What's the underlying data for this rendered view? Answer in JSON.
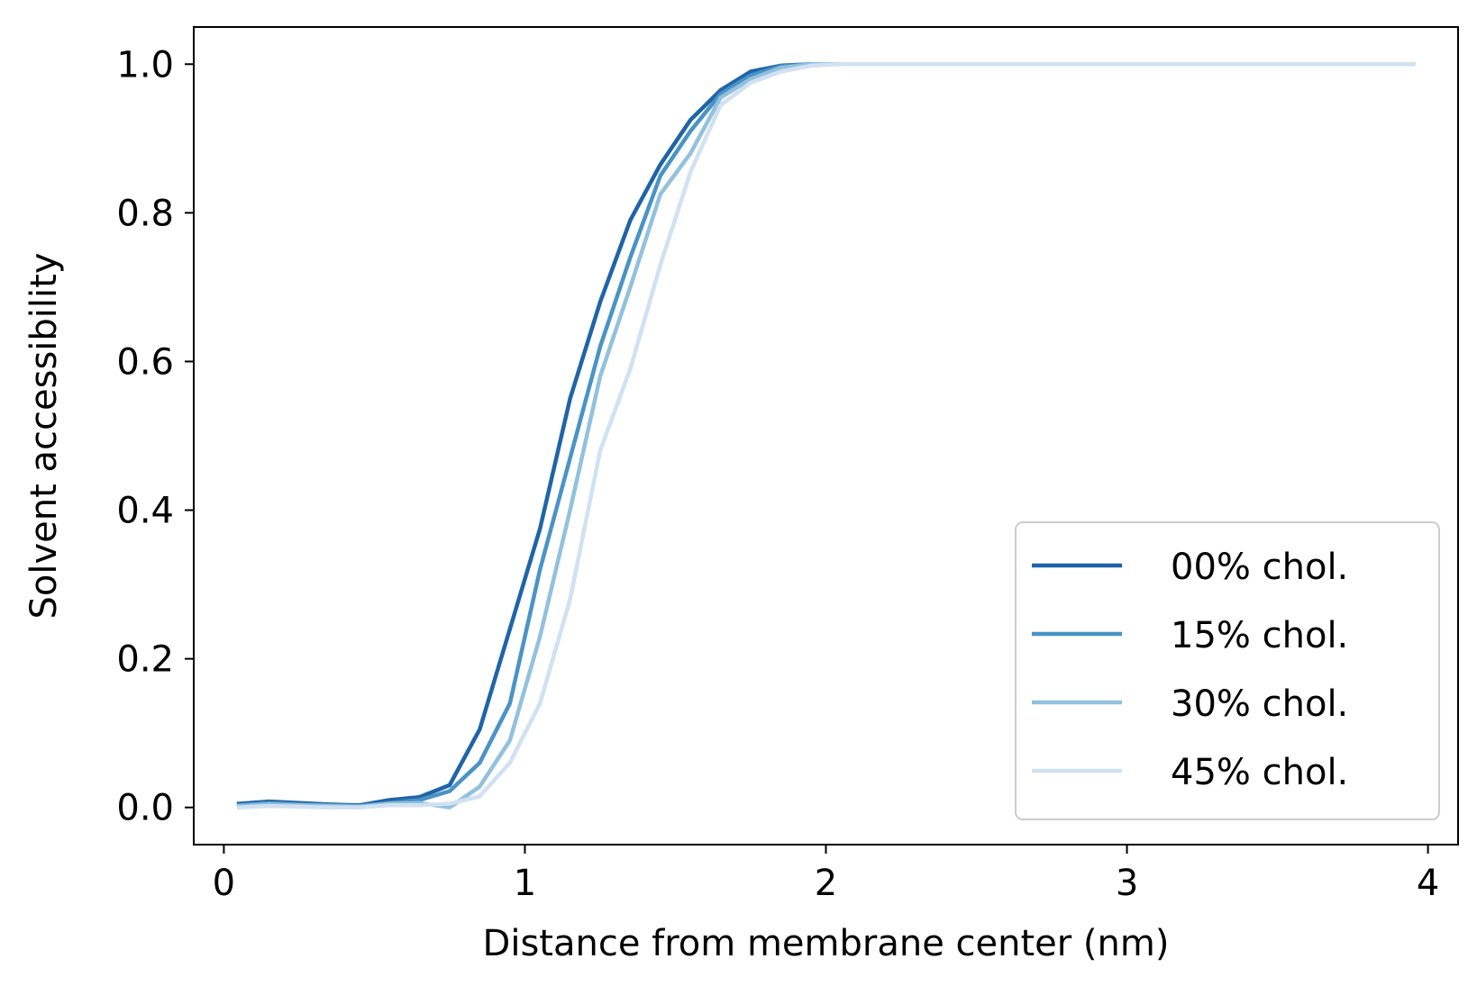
{
  "chart_data": {
    "type": "line",
    "xlabel": "Distance from membrane center (nm)",
    "ylabel": "Solvent accessibility",
    "xlim": [
      -0.1,
      4.1
    ],
    "ylim": [
      -0.05,
      1.05
    ],
    "xticks": [
      0,
      1,
      2,
      3,
      4
    ],
    "xtick_labels": [
      "0",
      "1",
      "2",
      "3",
      "4"
    ],
    "yticks": [
      0.0,
      0.2,
      0.4,
      0.6,
      0.8,
      1.0
    ],
    "ytick_labels": [
      "0.0",
      "0.2",
      "0.4",
      "0.6",
      "0.8",
      "1.0"
    ],
    "grid": false,
    "legend_position": "lower-right",
    "x": [
      0.05,
      0.15,
      0.25,
      0.35,
      0.45,
      0.55,
      0.65,
      0.75,
      0.85,
      0.95,
      1.05,
      1.15,
      1.25,
      1.35,
      1.45,
      1.55,
      1.65,
      1.75,
      1.85,
      1.95,
      2.05,
      2.15,
      2.25,
      2.35,
      2.45,
      2.55,
      2.65,
      2.75,
      2.85,
      2.95,
      3.05,
      3.15,
      3.25,
      3.35,
      3.45,
      3.55,
      3.65,
      3.75,
      3.85,
      3.95
    ],
    "series": [
      {
        "name": "00% chol.",
        "color": "#1f64a8",
        "values": [
          0.005,
          0.008,
          0.006,
          0.004,
          0.003,
          0.01,
          0.014,
          0.03,
          0.105,
          0.24,
          0.375,
          0.55,
          0.68,
          0.79,
          0.865,
          0.925,
          0.965,
          0.99,
          0.998,
          1.0,
          1.0,
          1.0,
          1.0,
          1.0,
          1.0,
          1.0,
          1.0,
          1.0,
          1.0,
          1.0,
          1.0,
          1.0,
          1.0,
          1.0,
          1.0,
          1.0,
          1.0,
          1.0,
          1.0,
          1.0
        ]
      },
      {
        "name": "15% chol.",
        "color": "#4a93c6",
        "values": [
          0.003,
          0.006,
          0.004,
          0.003,
          0.002,
          0.006,
          0.01,
          0.022,
          0.06,
          0.14,
          0.32,
          0.47,
          0.62,
          0.74,
          0.85,
          0.91,
          0.96,
          0.985,
          0.997,
          1.0,
          1.0,
          1.0,
          1.0,
          1.0,
          1.0,
          1.0,
          1.0,
          1.0,
          1.0,
          1.0,
          1.0,
          1.0,
          1.0,
          1.0,
          1.0,
          1.0,
          1.0,
          1.0,
          1.0,
          1.0
        ]
      },
      {
        "name": "30% chol.",
        "color": "#92c1de",
        "values": [
          0.002,
          0.004,
          0.003,
          0.002,
          0.001,
          0.005,
          0.006,
          0.0,
          0.028,
          0.09,
          0.23,
          0.4,
          0.58,
          0.7,
          0.825,
          0.88,
          0.955,
          0.98,
          0.995,
          1.0,
          1.0,
          1.0,
          1.0,
          1.0,
          1.0,
          1.0,
          1.0,
          1.0,
          1.0,
          1.0,
          1.0,
          1.0,
          1.0,
          1.0,
          1.0,
          1.0,
          1.0,
          1.0,
          1.0,
          1.0
        ]
      },
      {
        "name": "45% chol.",
        "color": "#d0e1f2",
        "values": [
          0.0,
          0.002,
          0.001,
          0.0,
          0.0,
          0.003,
          0.003,
          0.005,
          0.015,
          0.06,
          0.14,
          0.28,
          0.48,
          0.59,
          0.73,
          0.855,
          0.945,
          0.975,
          0.99,
          0.998,
          1.0,
          1.0,
          1.0,
          1.0,
          1.0,
          1.0,
          1.0,
          1.0,
          1.0,
          1.0,
          1.0,
          1.0,
          1.0,
          1.0,
          1.0,
          1.0,
          1.0,
          1.0,
          1.0,
          1.0
        ]
      }
    ]
  }
}
